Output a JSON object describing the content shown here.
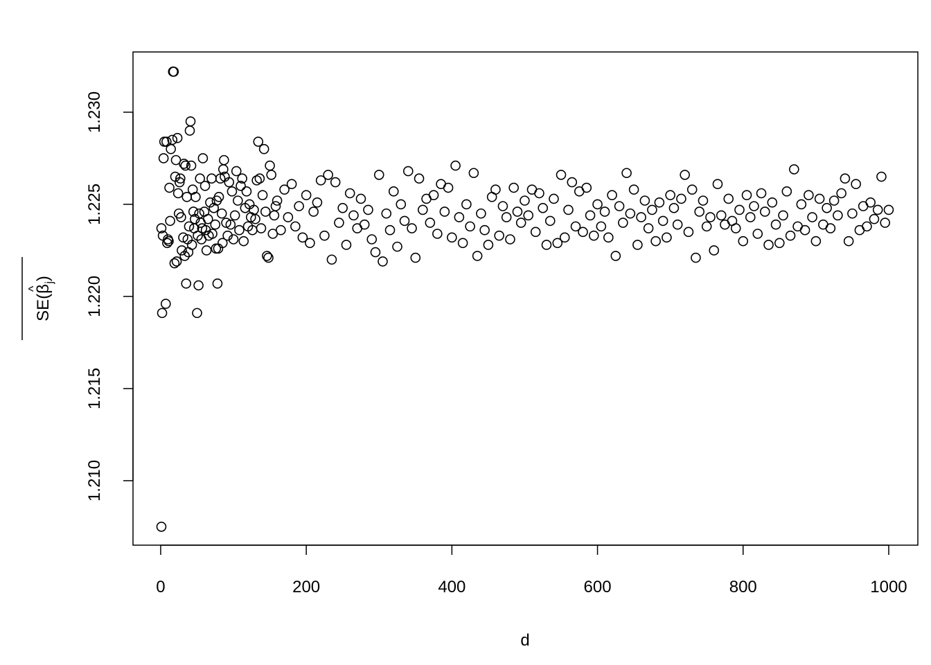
{
  "chart_data": {
    "type": "scatter",
    "title": "",
    "xlabel": "d",
    "ylabel": {
      "prefix": "SE(",
      "symbol": "β",
      "subscript": "j",
      "suffix": ")",
      "hat": "^",
      "overline": true
    },
    "xlim": [
      -38,
      1040
    ],
    "ylim": [
      1.2065,
      1.23327
    ],
    "x_ticks": [
      0,
      200,
      400,
      600,
      800,
      1000
    ],
    "x_tick_labels": [
      "0",
      "200",
      "400",
      "600",
      "800",
      "1000"
    ],
    "y_ticks": [
      1.21,
      1.215,
      1.22,
      1.225,
      1.23
    ],
    "y_tick_labels": [
      "1.210",
      "1.215",
      "1.220",
      "1.225",
      "1.230"
    ],
    "grid": false,
    "marker": "open-circle",
    "color": "#000000",
    "points": [
      [
        1,
        1.2237
      ],
      [
        1,
        1.2075
      ],
      [
        2,
        1.2191
      ],
      [
        3,
        1.2233
      ],
      [
        4,
        1.2275
      ],
      [
        5,
        1.2284
      ],
      [
        7,
        1.2196
      ],
      [
        8,
        1.2284
      ],
      [
        9,
        1.2229
      ],
      [
        10,
        1.2231
      ],
      [
        11,
        1.223
      ],
      [
        12,
        1.2259
      ],
      [
        13,
        1.2241
      ],
      [
        14,
        1.228
      ],
      [
        16,
        1.2285
      ],
      [
        17,
        1.2322
      ],
      [
        18,
        1.2322
      ],
      [
        19,
        1.2218
      ],
      [
        20,
        1.2265
      ],
      [
        21,
        1.2274
      ],
      [
        22,
        1.2219
      ],
      [
        23,
        1.2286
      ],
      [
        24,
        1.2256
      ],
      [
        25,
        1.2245
      ],
      [
        26,
        1.2262
      ],
      [
        27,
        1.2264
      ],
      [
        28,
        1.2243
      ],
      [
        29,
        1.2225
      ],
      [
        31,
        1.2232
      ],
      [
        32,
        1.2272
      ],
      [
        33,
        1.2222
      ],
      [
        34,
        1.2271
      ],
      [
        35,
        1.2207
      ],
      [
        36,
        1.2254
      ],
      [
        37,
        1.2231
      ],
      [
        38,
        1.2224
      ],
      [
        39,
        1.2238
      ],
      [
        40,
        1.229
      ],
      [
        41,
        1.2295
      ],
      [
        42,
        1.2271
      ],
      [
        43,
        1.2228
      ],
      [
        44,
        1.2258
      ],
      [
        45,
        1.2246
      ],
      [
        46,
        1.2237
      ],
      [
        47,
        1.2242
      ],
      [
        48,
        1.2254
      ],
      [
        50,
        1.2191
      ],
      [
        51,
        1.2233
      ],
      [
        52,
        1.2206
      ],
      [
        53,
        1.2245
      ],
      [
        54,
        1.2264
      ],
      [
        55,
        1.224
      ],
      [
        56,
        1.2231
      ],
      [
        57,
        1.2237
      ],
      [
        58,
        1.2275
      ],
      [
        60,
        1.2246
      ],
      [
        61,
        1.226
      ],
      [
        62,
        1.2236
      ],
      [
        63,
        1.2225
      ],
      [
        65,
        1.2242
      ],
      [
        66,
        1.2233
      ],
      [
        68,
        1.2251
      ],
      [
        70,
        1.2264
      ],
      [
        71,
        1.2234
      ],
      [
        73,
        1.2248
      ],
      [
        75,
        1.2239
      ],
      [
        76,
        1.2226
      ],
      [
        77,
        1.2252
      ],
      [
        78,
        1.2207
      ],
      [
        79,
        1.2226
      ],
      [
        80,
        1.2254
      ],
      [
        82,
        1.2264
      ],
      [
        84,
        1.2245
      ],
      [
        85,
        1.2229
      ],
      [
        86,
        1.2269
      ],
      [
        87,
        1.2274
      ],
      [
        88,
        1.2265
      ],
      [
        90,
        1.224
      ],
      [
        92,
        1.2233
      ],
      [
        94,
        1.2262
      ],
      [
        96,
        1.2239
      ],
      [
        98,
        1.2257
      ],
      [
        100,
        1.2231
      ],
      [
        102,
        1.2244
      ],
      [
        104,
        1.2268
      ],
      [
        106,
        1.2252
      ],
      [
        108,
        1.2236
      ],
      [
        110,
        1.226
      ],
      [
        112,
        1.2264
      ],
      [
        114,
        1.223
      ],
      [
        116,
        1.2248
      ],
      [
        118,
        1.2257
      ],
      [
        120,
        1.2238
      ],
      [
        122,
        1.225
      ],
      [
        124,
        1.2243
      ],
      [
        126,
        1.2236
      ],
      [
        128,
        1.2247
      ],
      [
        130,
        1.2242
      ],
      [
        132,
        1.2263
      ],
      [
        134,
        1.2284
      ],
      [
        136,
        1.2264
      ],
      [
        138,
        1.2237
      ],
      [
        140,
        1.2255
      ],
      [
        142,
        1.228
      ],
      [
        144,
        1.2246
      ],
      [
        146,
        1.2222
      ],
      [
        148,
        1.2221
      ],
      [
        150,
        1.2271
      ],
      [
        152,
        1.2266
      ],
      [
        154,
        1.2234
      ],
      [
        156,
        1.2244
      ],
      [
        158,
        1.2249
      ],
      [
        160,
        1.2252
      ],
      [
        165,
        1.2236
      ],
      [
        170,
        1.2258
      ],
      [
        175,
        1.2243
      ],
      [
        180,
        1.2261
      ],
      [
        185,
        1.2238
      ],
      [
        190,
        1.2249
      ],
      [
        195,
        1.2232
      ],
      [
        200,
        1.2255
      ],
      [
        205,
        1.2229
      ],
      [
        210,
        1.2246
      ],
      [
        215,
        1.2251
      ],
      [
        220,
        1.2263
      ],
      [
        225,
        1.2233
      ],
      [
        230,
        1.2266
      ],
      [
        235,
        1.222
      ],
      [
        240,
        1.2262
      ],
      [
        245,
        1.224
      ],
      [
        250,
        1.2248
      ],
      [
        255,
        1.2228
      ],
      [
        260,
        1.2256
      ],
      [
        265,
        1.2244
      ],
      [
        270,
        1.2237
      ],
      [
        275,
        1.2253
      ],
      [
        280,
        1.2239
      ],
      [
        285,
        1.2247
      ],
      [
        290,
        1.2231
      ],
      [
        295,
        1.2224
      ],
      [
        300,
        1.2266
      ],
      [
        305,
        1.2219
      ],
      [
        310,
        1.2245
      ],
      [
        315,
        1.2236
      ],
      [
        320,
        1.2257
      ],
      [
        325,
        1.2227
      ],
      [
        330,
        1.225
      ],
      [
        335,
        1.2241
      ],
      [
        340,
        1.2268
      ],
      [
        345,
        1.2237
      ],
      [
        350,
        1.2221
      ],
      [
        355,
        1.2264
      ],
      [
        360,
        1.2247
      ],
      [
        365,
        1.2253
      ],
      [
        370,
        1.224
      ],
      [
        375,
        1.2255
      ],
      [
        380,
        1.2234
      ],
      [
        385,
        1.2261
      ],
      [
        390,
        1.2246
      ],
      [
        395,
        1.2259
      ],
      [
        400,
        1.2232
      ],
      [
        405,
        1.2271
      ],
      [
        410,
        1.2243
      ],
      [
        415,
        1.2229
      ],
      [
        420,
        1.225
      ],
      [
        425,
        1.2238
      ],
      [
        430,
        1.2267
      ],
      [
        435,
        1.2222
      ],
      [
        440,
        1.2245
      ],
      [
        445,
        1.2236
      ],
      [
        450,
        1.2228
      ],
      [
        455,
        1.2254
      ],
      [
        460,
        1.2258
      ],
      [
        465,
        1.2233
      ],
      [
        470,
        1.2249
      ],
      [
        475,
        1.2243
      ],
      [
        480,
        1.2231
      ],
      [
        485,
        1.2259
      ],
      [
        490,
        1.2246
      ],
      [
        495,
        1.224
      ],
      [
        500,
        1.2252
      ],
      [
        505,
        1.2244
      ],
      [
        510,
        1.2258
      ],
      [
        515,
        1.2235
      ],
      [
        520,
        1.2256
      ],
      [
        525,
        1.2248
      ],
      [
        530,
        1.2228
      ],
      [
        535,
        1.2241
      ],
      [
        540,
        1.2253
      ],
      [
        545,
        1.2229
      ],
      [
        550,
        1.2266
      ],
      [
        555,
        1.2232
      ],
      [
        560,
        1.2247
      ],
      [
        565,
        1.2262
      ],
      [
        570,
        1.2238
      ],
      [
        575,
        1.2257
      ],
      [
        580,
        1.2235
      ],
      [
        585,
        1.2259
      ],
      [
        590,
        1.2244
      ],
      [
        595,
        1.2233
      ],
      [
        600,
        1.225
      ],
      [
        605,
        1.2238
      ],
      [
        610,
        1.2246
      ],
      [
        615,
        1.2232
      ],
      [
        620,
        1.2255
      ],
      [
        625,
        1.2222
      ],
      [
        630,
        1.2249
      ],
      [
        635,
        1.224
      ],
      [
        640,
        1.2267
      ],
      [
        645,
        1.2245
      ],
      [
        650,
        1.2258
      ],
      [
        655,
        1.2228
      ],
      [
        660,
        1.2243
      ],
      [
        665,
        1.2252
      ],
      [
        670,
        1.2237
      ],
      [
        675,
        1.2247
      ],
      [
        680,
        1.223
      ],
      [
        685,
        1.2251
      ],
      [
        690,
        1.2241
      ],
      [
        695,
        1.2232
      ],
      [
        700,
        1.2255
      ],
      [
        705,
        1.2248
      ],
      [
        710,
        1.2239
      ],
      [
        715,
        1.2253
      ],
      [
        720,
        1.2266
      ],
      [
        725,
        1.2235
      ],
      [
        730,
        1.2258
      ],
      [
        735,
        1.2221
      ],
      [
        740,
        1.2246
      ],
      [
        745,
        1.2252
      ],
      [
        750,
        1.2238
      ],
      [
        755,
        1.2243
      ],
      [
        760,
        1.2225
      ],
      [
        765,
        1.2261
      ],
      [
        770,
        1.2244
      ],
      [
        775,
        1.2239
      ],
      [
        780,
        1.2253
      ],
      [
        785,
        1.2241
      ],
      [
        790,
        1.2237
      ],
      [
        795,
        1.2247
      ],
      [
        800,
        1.223
      ],
      [
        805,
        1.2255
      ],
      [
        810,
        1.2243
      ],
      [
        815,
        1.2249
      ],
      [
        820,
        1.2234
      ],
      [
        825,
        1.2256
      ],
      [
        830,
        1.2246
      ],
      [
        835,
        1.2228
      ],
      [
        840,
        1.2251
      ],
      [
        845,
        1.2239
      ],
      [
        850,
        1.2229
      ],
      [
        855,
        1.2244
      ],
      [
        860,
        1.2257
      ],
      [
        865,
        1.2233
      ],
      [
        870,
        1.2269
      ],
      [
        875,
        1.2238
      ],
      [
        880,
        1.225
      ],
      [
        885,
        1.2236
      ],
      [
        890,
        1.2255
      ],
      [
        895,
        1.2243
      ],
      [
        900,
        1.223
      ],
      [
        905,
        1.2253
      ],
      [
        910,
        1.2239
      ],
      [
        915,
        1.2248
      ],
      [
        920,
        1.2237
      ],
      [
        925,
        1.2252
      ],
      [
        930,
        1.2244
      ],
      [
        935,
        1.2256
      ],
      [
        940,
        1.2264
      ],
      [
        945,
        1.223
      ],
      [
        950,
        1.2245
      ],
      [
        955,
        1.2261
      ],
      [
        960,
        1.2236
      ],
      [
        965,
        1.2249
      ],
      [
        970,
        1.2238
      ],
      [
        975,
        1.2251
      ],
      [
        980,
        1.2242
      ],
      [
        985,
        1.2247
      ],
      [
        990,
        1.2265
      ],
      [
        995,
        1.224
      ],
      [
        1000,
        1.2247
      ]
    ]
  }
}
